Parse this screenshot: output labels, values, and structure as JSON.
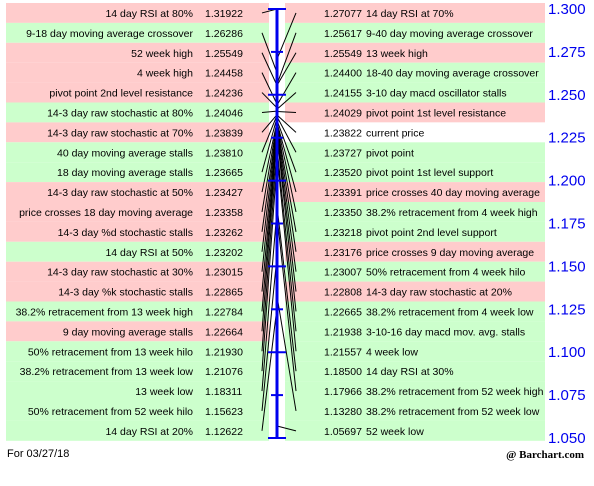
{
  "footer": {
    "date": "For 03/27/18",
    "brand": "@ Barchart.com"
  },
  "colors": {
    "support": "#ccffcc",
    "resistance": "#ffcccc",
    "current": "#ffffff",
    "axis": "#0000ee"
  },
  "chart_data": {
    "type": "pivot-ladder",
    "ylim": [
      1.05,
      1.3
    ],
    "yticks": [
      "1.300",
      "1.275",
      "1.250",
      "1.225",
      "1.200",
      "1.175",
      "1.150",
      "1.125",
      "1.100",
      "1.075",
      "1.050"
    ],
    "left": [
      {
        "label": "14 day RSI at 80%",
        "value": "1.31922",
        "kind": "resistance"
      },
      {
        "label": "9-18 day moving average crossover",
        "value": "1.26286",
        "kind": "support"
      },
      {
        "label": "52 week high",
        "value": "1.25549",
        "kind": "resistance"
      },
      {
        "label": "4 week high",
        "value": "1.24458",
        "kind": "resistance"
      },
      {
        "label": "pivot point 2nd level resistance",
        "value": "1.24236",
        "kind": "resistance"
      },
      {
        "label": "14-3 day raw stochastic at 80%",
        "value": "1.24046",
        "kind": "support"
      },
      {
        "label": "14-3 day raw stochastic at 70%",
        "value": "1.23839",
        "kind": "resistance"
      },
      {
        "label": "40 day moving average stalls",
        "value": "1.23810",
        "kind": "support"
      },
      {
        "label": "18 day moving average stalls",
        "value": "1.23665",
        "kind": "support"
      },
      {
        "label": "14-3 day raw stochastic at 50%",
        "value": "1.23427",
        "kind": "resistance"
      },
      {
        "label": "price crosses 18 day moving average",
        "value": "1.23358",
        "kind": "resistance"
      },
      {
        "label": "14-3 day %d stochastic stalls",
        "value": "1.23262",
        "kind": "resistance"
      },
      {
        "label": "14 day RSI at 50%",
        "value": "1.23202",
        "kind": "support"
      },
      {
        "label": "14-3 day raw stochastic at 30%",
        "value": "1.23015",
        "kind": "resistance"
      },
      {
        "label": "14-3 day %k stochastic stalls",
        "value": "1.22865",
        "kind": "resistance"
      },
      {
        "label": "38.2% retracement from 13 week high",
        "value": "1.22784",
        "kind": "support"
      },
      {
        "label": "9 day moving average stalls",
        "value": "1.22664",
        "kind": "resistance"
      },
      {
        "label": "50% retracement from 13 week hilo",
        "value": "1.21930",
        "kind": "support"
      },
      {
        "label": "38.2% retracement from 13 week low",
        "value": "1.21076",
        "kind": "support"
      },
      {
        "label": "13 week low",
        "value": "1.18311",
        "kind": "support"
      },
      {
        "label": "50% retracement from 52 week hilo",
        "value": "1.15623",
        "kind": "support"
      },
      {
        "label": "14 day RSI at 20%",
        "value": "1.12622",
        "kind": "support"
      }
    ],
    "right": [
      {
        "label": "14 day RSI at 70%",
        "value": "1.27077",
        "kind": "resistance"
      },
      {
        "label": "9-40 day moving average crossover",
        "value": "1.25617",
        "kind": "support"
      },
      {
        "label": "13 week high",
        "value": "1.25549",
        "kind": "resistance"
      },
      {
        "label": "18-40 day moving average crossover",
        "value": "1.24400",
        "kind": "support"
      },
      {
        "label": "3-10 day macd oscillator stalls",
        "value": "1.24155",
        "kind": "support"
      },
      {
        "label": "pivot point 1st level resistance",
        "value": "1.24029",
        "kind": "resistance"
      },
      {
        "label": "current price",
        "value": "1.23822",
        "kind": "current"
      },
      {
        "label": "pivot point",
        "value": "1.23727",
        "kind": "support"
      },
      {
        "label": "pivot point 1st level support",
        "value": "1.23520",
        "kind": "support"
      },
      {
        "label": "price crosses 40 day moving average",
        "value": "1.23391",
        "kind": "resistance"
      },
      {
        "label": "38.2% retracement from 4 week high",
        "value": "1.23350",
        "kind": "support"
      },
      {
        "label": "pivot point 2nd level support",
        "value": "1.23218",
        "kind": "support"
      },
      {
        "label": "price crosses 9 day moving average",
        "value": "1.23176",
        "kind": "resistance"
      },
      {
        "label": "50% retracement from 4 week hilo",
        "value": "1.23007",
        "kind": "support"
      },
      {
        "label": "14-3 day raw stochastic at 20%",
        "value": "1.22808",
        "kind": "resistance"
      },
      {
        "label": "38.2% retracement from 4 week low",
        "value": "1.22665",
        "kind": "support"
      },
      {
        "label": "3-10-16 day macd mov. avg. stalls",
        "value": "1.21938",
        "kind": "support"
      },
      {
        "label": "4 week low",
        "value": "1.21557",
        "kind": "support"
      },
      {
        "label": "14 day RSI at 30%",
        "value": "1.18500",
        "kind": "support"
      },
      {
        "label": "38.2% retracement from 52 week high",
        "value": "1.17966",
        "kind": "support"
      },
      {
        "label": "38.2% retracement from 52 week low",
        "value": "1.13280",
        "kind": "support"
      },
      {
        "label": "52 week low",
        "value": "1.05697",
        "kind": "support"
      }
    ]
  }
}
